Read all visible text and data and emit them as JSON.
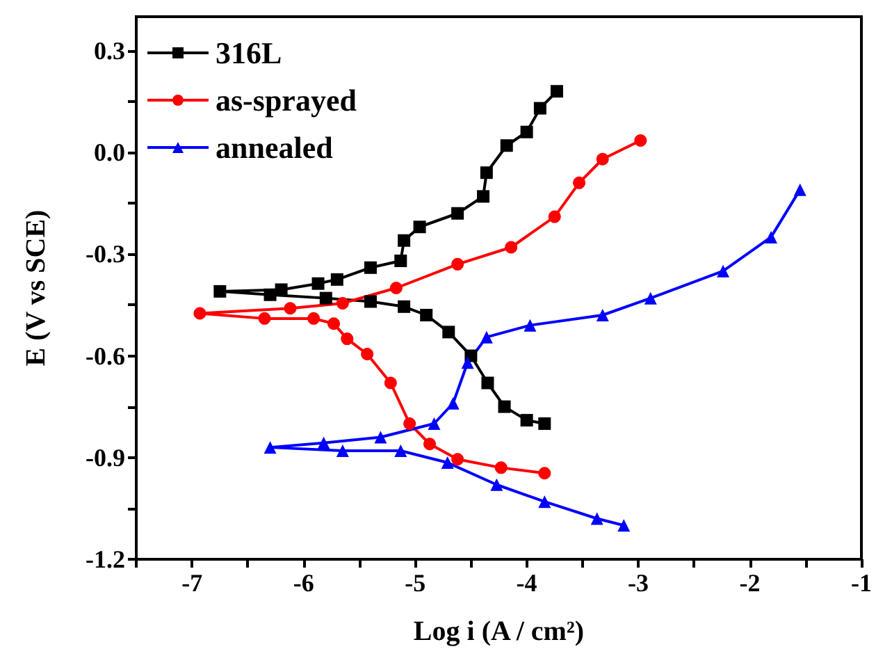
{
  "chart_data": {
    "type": "line",
    "xlabel": "Log i (A / cm²)",
    "ylabel": "E (V vs SCE)",
    "xlim": [
      -7.5,
      -1
    ],
    "ylim": [
      -1.2,
      0.4
    ],
    "xticks": [
      {
        "value": -7.5,
        "label": null
      },
      -7,
      {
        "value": -6.5,
        "label": null
      },
      -6,
      {
        "value": -5.5,
        "label": null
      },
      -5,
      {
        "value": -4.5,
        "label": null
      },
      -4,
      {
        "value": -3.5,
        "label": null
      },
      -3,
      {
        "value": -2.5,
        "label": null
      },
      -2,
      {
        "value": -1.5,
        "label": null
      },
      -1
    ],
    "yticks": [
      {
        "value": -1.2,
        "label": "-1.2"
      },
      {
        "value": -1.05,
        "label": null
      },
      -0.9,
      {
        "value": -0.75,
        "label": null
      },
      -0.6,
      {
        "value": -0.45,
        "label": null
      },
      -0.3,
      {
        "value": -0.15,
        "label": null
      },
      {
        "value": 0,
        "label": "0.0"
      },
      {
        "value": 0.15,
        "label": null
      },
      0.3
    ],
    "grid": false,
    "legend": "top left",
    "series": [
      {
        "name": "316L",
        "color": "#000000",
        "marker": "square",
        "x": [
          -3.84,
          -4.0,
          -4.2,
          -4.35,
          -4.5,
          -4.7,
          -4.9,
          -5.1,
          -5.4,
          -5.8,
          -6.3,
          -6.75,
          -6.2,
          -5.87,
          -5.7,
          -5.4,
          -5.13,
          -5.1,
          -4.96,
          -4.62,
          -4.39,
          -4.36,
          -4.18,
          -4.0,
          -3.88,
          -3.73
        ],
        "values": [
          -0.8,
          -0.79,
          -0.75,
          -0.68,
          -0.6,
          -0.53,
          -0.48,
          -0.455,
          -0.44,
          -0.43,
          -0.42,
          -0.41,
          -0.405,
          -0.387,
          -0.375,
          -0.34,
          -0.32,
          -0.26,
          -0.22,
          -0.18,
          -0.13,
          -0.06,
          0.02,
          0.06,
          0.13,
          0.18
        ]
      },
      {
        "name": "as-sprayed",
        "color": "#ff0000",
        "marker": "circle",
        "x": [
          -3.84,
          -4.23,
          -4.62,
          -4.87,
          -5.05,
          -5.22,
          -5.43,
          -5.61,
          -5.73,
          -5.91,
          -6.35,
          -6.93,
          -6.12,
          -5.65,
          -5.17,
          -4.62,
          -4.14,
          -3.75,
          -3.53,
          -3.32,
          -2.98
        ],
        "values": [
          -0.946,
          -0.93,
          -0.905,
          -0.86,
          -0.8,
          -0.68,
          -0.595,
          -0.55,
          -0.505,
          -0.49,
          -0.49,
          -0.475,
          -0.46,
          -0.445,
          -0.4,
          -0.33,
          -0.28,
          -0.19,
          -0.09,
          -0.02,
          0.035
        ]
      },
      {
        "name": "annealed",
        "color": "#0000ff",
        "marker": "triangle",
        "x": [
          -3.13,
          -3.37,
          -3.84,
          -4.27,
          -4.71,
          -5.13,
          -5.65,
          -6.3,
          -5.82,
          -5.31,
          -4.83,
          -4.66,
          -4.53,
          -4.36,
          -3.97,
          -3.32,
          -2.89,
          -2.24,
          -1.81,
          -1.55
        ],
        "values": [
          -1.1,
          -1.08,
          -1.03,
          -0.98,
          -0.915,
          -0.88,
          -0.88,
          -0.87,
          -0.857,
          -0.84,
          -0.8,
          -0.74,
          -0.62,
          -0.545,
          -0.51,
          -0.48,
          -0.43,
          -0.35,
          -0.25,
          -0.11
        ]
      }
    ]
  }
}
